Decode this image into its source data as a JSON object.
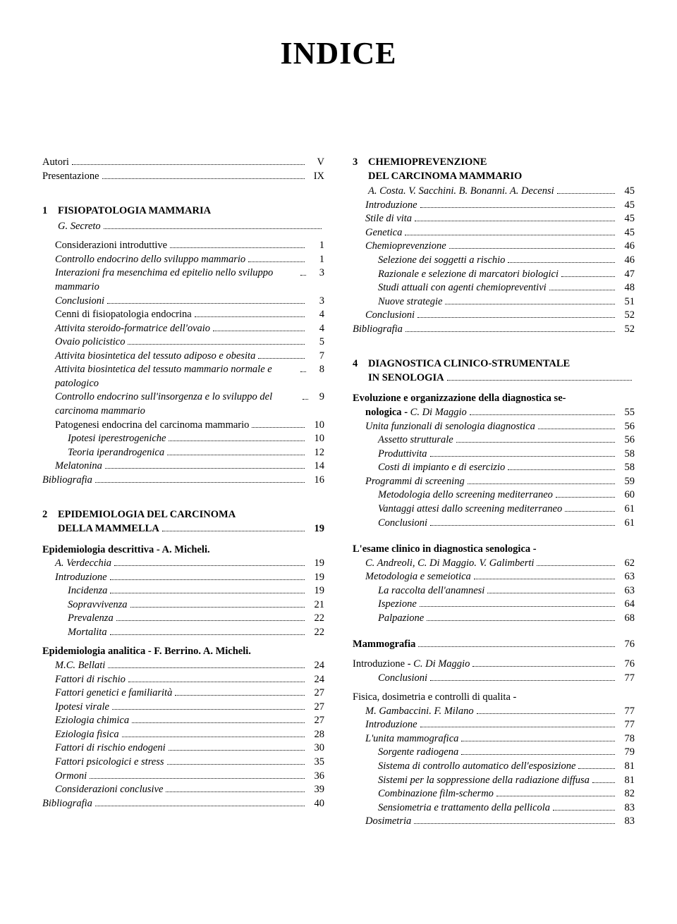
{
  "title": "INDICE",
  "front": [
    {
      "label": "Autori",
      "page": "V",
      "italic": false,
      "indent": 0
    },
    {
      "label": "Presentazione",
      "page": "IX",
      "italic": false,
      "indent": 0
    }
  ],
  "ch1": {
    "num": "1",
    "title": "FISIOPATOLOGIA MAMMARIA",
    "author": "G. Secreto",
    "entries": [
      {
        "label": "Considerazioni introduttive",
        "page": "1",
        "indent": 1,
        "italic": false
      },
      {
        "label": "Controllo endocrino dello sviluppo mammario",
        "page": "1",
        "indent": 1,
        "italic": true
      },
      {
        "label": "Interazioni fra mesenchima ed epitelio nello sviluppo mammario",
        "page": "3",
        "indent": 1,
        "italic": true,
        "wrap": true
      },
      {
        "label": "Conclusioni",
        "page": "3",
        "indent": 1,
        "italic": true
      },
      {
        "label": "Cenni di fisiopatologia endocrina",
        "page": "4",
        "indent": 1,
        "italic": false
      },
      {
        "label": "Attivita steroido-formatrice dell'ovaio",
        "page": "4",
        "indent": 1,
        "italic": true
      },
      {
        "label": "Ovaio policistico",
        "page": "5",
        "indent": 1,
        "italic": true
      },
      {
        "label": "Attivita biosintetica del tessuto adiposo e obesita",
        "page": "7",
        "indent": 1,
        "italic": true
      },
      {
        "label": "Attivita biosintetica del tessuto mammario normale e patologico",
        "page": "8",
        "indent": 1,
        "italic": true,
        "wrap": true
      },
      {
        "label": "Controllo endocrino sull'insorgenza e lo sviluppo del carcinoma mammario",
        "page": "9",
        "indent": 1,
        "italic": true,
        "wrap": true
      },
      {
        "label": "Patogenesi endocrina del carcinoma mammario",
        "page": "10",
        "indent": 1,
        "italic": false
      },
      {
        "label": "Ipotesi iperestrogeniche",
        "page": "10",
        "indent": 2,
        "italic": true
      },
      {
        "label": "Teoria iperandrogenica",
        "page": "12",
        "indent": 2,
        "italic": true
      },
      {
        "label": "Melatonina",
        "page": "14",
        "indent": 1,
        "italic": true
      },
      {
        "label": "Bibliografia",
        "page": "16",
        "indent": 0,
        "italic": true
      }
    ]
  },
  "ch2": {
    "num": "2",
    "title": "EPIDEMIOLOGIA DEL CARCINOMA DELLA MAMMELLA",
    "page": "19",
    "sections": [
      {
        "heading": "Epidemiologia descrittiva - A. Micheli.",
        "authors": "A. Verdecchia",
        "page": "19",
        "entries": [
          {
            "label": "Introduzione",
            "page": "19",
            "indent": 1,
            "italic": true
          },
          {
            "label": "Incidenza",
            "page": "19",
            "indent": 2,
            "italic": true
          },
          {
            "label": "Sopravvivenza",
            "page": "21",
            "indent": 2,
            "italic": true
          },
          {
            "label": "Prevalenza",
            "page": "22",
            "indent": 2,
            "italic": true
          },
          {
            "label": "Mortalita",
            "page": "22",
            "indent": 2,
            "italic": true
          }
        ]
      },
      {
        "heading": "Epidemiologia analitica - F. Berrino. A. Micheli.",
        "authors": "M.C. Bellati",
        "page": "24",
        "entries": [
          {
            "label": "Fattori di rischio",
            "page": "24",
            "indent": 1,
            "italic": true
          },
          {
            "label": "Fattori genetici e familiarità",
            "page": "27",
            "indent": 1,
            "italic": true
          },
          {
            "label": "Ipotesi virale",
            "page": "27",
            "indent": 1,
            "italic": true
          },
          {
            "label": "Eziologia chimica",
            "page": "27",
            "indent": 1,
            "italic": true
          },
          {
            "label": "Eziologia fisica",
            "page": "28",
            "indent": 1,
            "italic": true
          },
          {
            "label": "Fattori di rischio endogeni",
            "page": "30",
            "indent": 1,
            "italic": true
          },
          {
            "label": "Fattori psicologici e stress",
            "page": "35",
            "indent": 1,
            "italic": true
          },
          {
            "label": "Ormoni",
            "page": "36",
            "indent": 1,
            "italic": true
          },
          {
            "label": "Considerazioni conclusive",
            "page": "39",
            "indent": 1,
            "italic": true
          },
          {
            "label": "Bibliografia",
            "page": "40",
            "indent": 0,
            "italic": true
          }
        ]
      }
    ]
  },
  "ch3": {
    "num": "3",
    "title": "CHEMIOPREVENZIONE DEL CARCINOMA MAMMARIO",
    "author": "A. Costa. V. Sacchini. B. Bonanni. A. Decensi",
    "authorPage": "45",
    "entries": [
      {
        "label": "Introduzione",
        "page": "45",
        "indent": 1,
        "italic": true
      },
      {
        "label": "Stile di vita",
        "page": "45",
        "indent": 1,
        "italic": true
      },
      {
        "label": "Genetica",
        "page": "45",
        "indent": 1,
        "italic": true
      },
      {
        "label": "Chemioprevenzione",
        "page": "46",
        "indent": 1,
        "italic": true
      },
      {
        "label": "Selezione dei soggetti a rischio",
        "page": "46",
        "indent": 2,
        "italic": true
      },
      {
        "label": "Razionale e selezione di marcatori biologici",
        "page": "47",
        "indent": 2,
        "italic": true
      },
      {
        "label": "Studi attuali con agenti chemiopreventivi",
        "page": "48",
        "indent": 2,
        "italic": true
      },
      {
        "label": "Nuove strategie",
        "page": "51",
        "indent": 2,
        "italic": true
      },
      {
        "label": "Conclusioni",
        "page": "52",
        "indent": 1,
        "italic": true
      },
      {
        "label": "Bibliografia",
        "page": "52",
        "indent": 0,
        "italic": true
      }
    ]
  },
  "ch4": {
    "num": "4",
    "title": "DIAGNOSTICA CLINICO-STRUMENTALE IN SENOLOGIA",
    "sections": [
      {
        "heading": "Evoluzione e organizzazione della diagnostica senologica - C. Di Maggio",
        "page": "55",
        "headWrap": true,
        "entries": [
          {
            "label": "Unita funzionali di senologia diagnostica",
            "page": "56",
            "indent": 1,
            "italic": true
          },
          {
            "label": "Assetto strutturale",
            "page": "56",
            "indent": 2,
            "italic": true
          },
          {
            "label": "Produttivita",
            "page": "58",
            "indent": 2,
            "italic": true
          },
          {
            "label": "Costi di impianto e di esercizio",
            "page": "58",
            "indent": 2,
            "italic": true
          },
          {
            "label": "Programmi di screening",
            "page": "59",
            "indent": 1,
            "italic": true
          },
          {
            "label": "Metodologia dello screening mediterraneo",
            "page": "60",
            "indent": 2,
            "italic": true
          },
          {
            "label": "Vantaggi attesi dallo screening mediterraneo",
            "page": "61",
            "indent": 2,
            "italic": true
          },
          {
            "label": "Conclusioni",
            "page": "61",
            "indent": 2,
            "italic": true
          }
        ]
      },
      {
        "heading": "L'esame clinico in diagnostica senologica -",
        "authors": "C. Andreoli, C. Di Maggio. V. Galimberti",
        "page": "62",
        "entries": [
          {
            "label": "Metodologia e semeiotica",
            "page": "63",
            "indent": 1,
            "italic": true
          },
          {
            "label": "La raccolta dell'anamnesi",
            "page": "63",
            "indent": 2,
            "italic": true
          },
          {
            "label": "Ispezione",
            "page": "64",
            "indent": 2,
            "italic": true
          },
          {
            "label": "Palpazione",
            "page": "68",
            "indent": 2,
            "italic": true
          }
        ]
      },
      {
        "heading": "Mammografia",
        "page": "76",
        "plain": true,
        "entries": []
      },
      {
        "heading": "Introduzione - C. Di Maggio",
        "page": "76",
        "italicHead": true,
        "entries": [
          {
            "label": "Conclusioni",
            "page": "77",
            "indent": 2,
            "italic": true
          }
        ]
      },
      {
        "heading": "Fisica, dosimetria e controlli di qualita -",
        "authors": "M. Gambaccini. F. Milano",
        "page": "77",
        "entries": [
          {
            "label": "Introduzione",
            "page": "77",
            "indent": 1,
            "italic": true
          },
          {
            "label": "L'unita mammografica",
            "page": "78",
            "indent": 1,
            "italic": true
          },
          {
            "label": "Sorgente radiogena",
            "page": "79",
            "indent": 2,
            "italic": true
          },
          {
            "label": "Sistema di controllo automatico dell'esposizione",
            "page": "81",
            "indent": 2,
            "italic": true,
            "wrap": true
          },
          {
            "label": "Sistemi per la soppressione della radiazione diffusa",
            "page": "81",
            "indent": 2,
            "italic": true,
            "wrap": true
          },
          {
            "label": "Combinazione film-schermo",
            "page": "82",
            "indent": 2,
            "italic": true
          },
          {
            "label": "Sensiometria e trattamento della pellicola",
            "page": "83",
            "indent": 2,
            "italic": true
          },
          {
            "label": "Dosimetria",
            "page": "83",
            "indent": 1,
            "italic": true
          }
        ]
      }
    ]
  }
}
